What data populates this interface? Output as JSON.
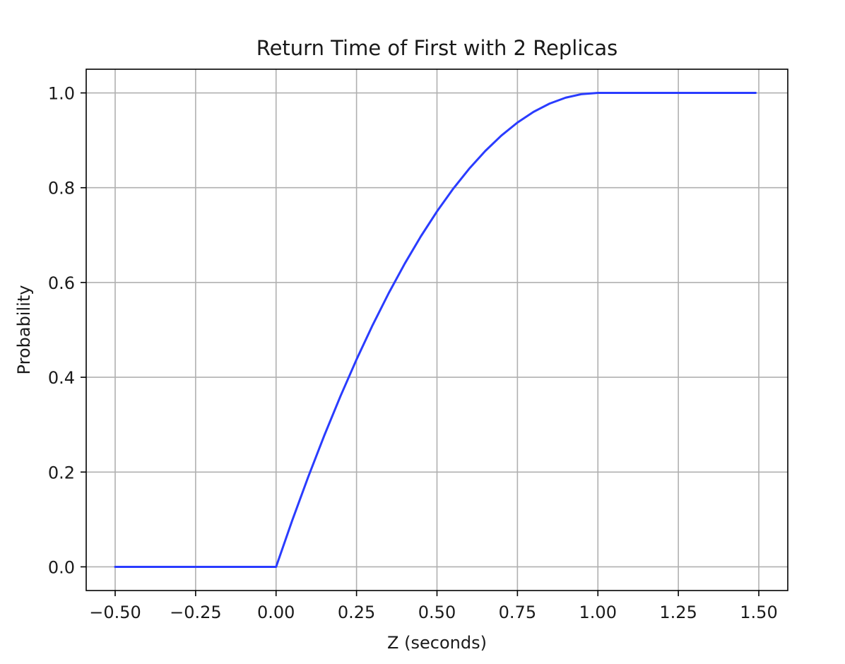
{
  "chart_data": {
    "type": "line",
    "title": "Return Time of First with 2 Replicas",
    "xlabel": "Z (seconds)",
    "ylabel": "Probability",
    "xlim": [
      -0.59,
      1.59
    ],
    "ylim": [
      -0.05,
      1.05
    ],
    "grid": true,
    "legend": "none",
    "x_ticks": [
      -0.5,
      -0.25,
      0.0,
      0.25,
      0.5,
      0.75,
      1.0,
      1.25,
      1.5
    ],
    "x_tick_labels": [
      "−0.50",
      "−0.25",
      "0.00",
      "0.25",
      "0.50",
      "0.75",
      "1.00",
      "1.25",
      "1.50"
    ],
    "y_ticks": [
      0.0,
      0.2,
      0.4,
      0.6,
      0.8,
      1.0
    ],
    "y_tick_labels": [
      "0.0",
      "0.2",
      "0.4",
      "0.6",
      "0.8",
      "1.0"
    ],
    "series": [
      {
        "color": "#2a3cff",
        "x": [
          -0.5,
          -0.25,
          0.0,
          0.05,
          0.1,
          0.15,
          0.2,
          0.25,
          0.3,
          0.35,
          0.4,
          0.45,
          0.5,
          0.55,
          0.6,
          0.65,
          0.7,
          0.75,
          0.8,
          0.85,
          0.9,
          0.95,
          1.0,
          1.25,
          1.49
        ],
        "y": [
          0.0,
          0.0,
          0.0,
          0.0975,
          0.19,
          0.2775,
          0.36,
          0.4375,
          0.51,
          0.5775,
          0.64,
          0.6975,
          0.75,
          0.7975,
          0.84,
          0.8775,
          0.91,
          0.9375,
          0.96,
          0.9775,
          0.99,
          0.9975,
          1.0,
          1.0,
          1.0
        ]
      }
    ]
  }
}
